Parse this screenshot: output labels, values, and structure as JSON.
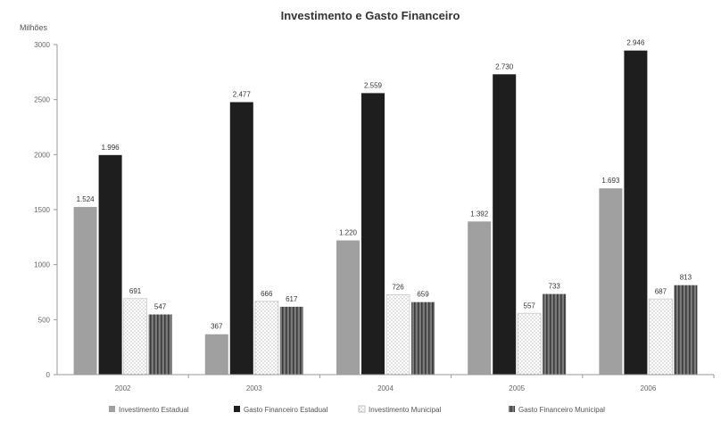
{
  "chart_data": {
    "type": "bar",
    "title": "Investimento e Gasto Financeiro",
    "ylabel": "Milhões",
    "xlabel": "",
    "categories": [
      "2002",
      "2003",
      "2004",
      "2005",
      "2006"
    ],
    "ylim": [
      0,
      3000
    ],
    "yticks": [
      "0",
      "500",
      "1000",
      "1500",
      "2000",
      "2500",
      "3000"
    ],
    "grid": false,
    "legend_position": "bottom",
    "series": [
      {
        "name": "Investimento Estadual",
        "color": "#a0a0a0",
        "pattern": "solid",
        "values": [
          1524,
          367,
          1220,
          1392,
          1693
        ],
        "labels": [
          "1.524",
          "367",
          "1.220",
          "1.392",
          "1.693"
        ]
      },
      {
        "name": "Gasto Financeiro Estadual",
        "color": "#1e1e1e",
        "pattern": "solid",
        "values": [
          1996,
          2477,
          2559,
          2730,
          2946
        ],
        "labels": [
          "1.996",
          "2.477",
          "2.559",
          "2.730",
          "2.946"
        ]
      },
      {
        "name": "Investimento Municipal",
        "color": "#ffffff",
        "pattern": "dotted",
        "values": [
          691,
          666,
          726,
          557,
          687
        ],
        "labels": [
          "691",
          "666",
          "726",
          "557",
          "687"
        ]
      },
      {
        "name": "Gasto Financeiro Municipal",
        "color": "#6e6e6e",
        "pattern": "striped",
        "values": [
          547,
          617,
          659,
          733,
          813
        ],
        "labels": [
          "547",
          "617",
          "659",
          "733",
          "813"
        ]
      }
    ]
  }
}
